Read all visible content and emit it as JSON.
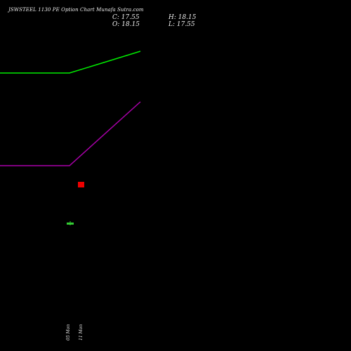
{
  "title": "JSWSTEEL 1130 PE Option Chart Munafa Sutra.com",
  "header": {
    "close": "C: 17.55",
    "open": "O: 18.15",
    "high": "H: 18.15",
    "low": "L: 17.55"
  },
  "colors": {
    "background": "#000000",
    "upper_line": "#00ee00",
    "lower_line": "#aa00aa",
    "bearish_candle": "#ee0000",
    "bullish_candle": "#33cc33"
  },
  "chart_data": {
    "type": "candlestick",
    "x_tick_labels": [
      "05 Mon",
      "11 Mon"
    ],
    "lines": [
      {
        "color": "#00ee00",
        "trend": "flat then rising"
      },
      {
        "color": "#aa00aa",
        "trend": "flat then rising"
      }
    ],
    "candles": [
      {
        "index": 0,
        "open": 18.15,
        "high": 18.15,
        "low": 17.55,
        "close": 17.55,
        "direction": "down"
      }
    ],
    "grid": false,
    "legend": "none"
  }
}
